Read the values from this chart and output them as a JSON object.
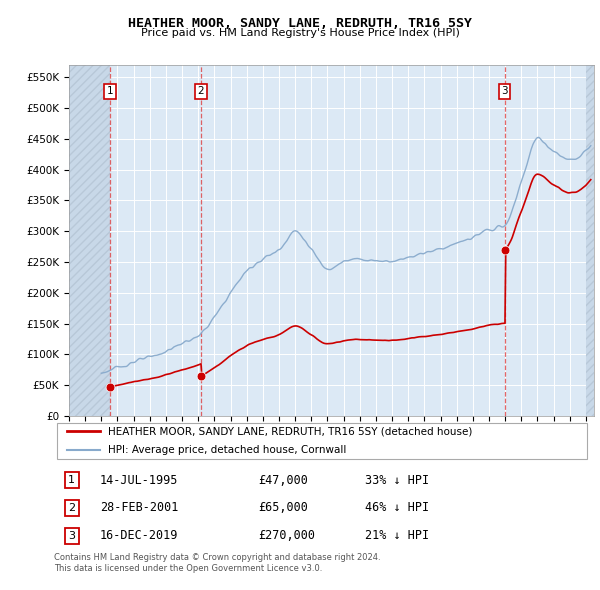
{
  "title": "HEATHER MOOR, SANDY LANE, REDRUTH, TR16 5SY",
  "subtitle": "Price paid vs. HM Land Registry's House Price Index (HPI)",
  "ylim": [
    0,
    570000
  ],
  "yticks": [
    0,
    50000,
    100000,
    150000,
    200000,
    250000,
    300000,
    350000,
    400000,
    450000,
    500000,
    550000
  ],
  "ytick_labels": [
    "£0",
    "£50K",
    "£100K",
    "£150K",
    "£200K",
    "£250K",
    "£300K",
    "£350K",
    "£400K",
    "£450K",
    "£500K",
    "£550K"
  ],
  "xlim_start": 1993.0,
  "xlim_end": 2025.5,
  "background_color": "#ffffff",
  "plot_bg_color": "#dce9f5",
  "sale_color": "#cc0000",
  "hpi_color": "#88aacc",
  "sale_dates": [
    1995.54,
    2001.16,
    2019.96
  ],
  "sale_prices": [
    47000,
    65000,
    270000
  ],
  "sale_labels": [
    "1",
    "2",
    "3"
  ],
  "hpi_anchors_x": [
    1995,
    1996,
    1997,
    1998,
    1999,
    2000,
    2001,
    2002,
    2003,
    2004,
    2005,
    2006,
    2007,
    2008,
    2009,
    2010,
    2011,
    2012,
    2013,
    2014,
    2015,
    2016,
    2017,
    2018,
    2019,
    2020,
    2021,
    2022,
    2023,
    2024,
    2025
  ],
  "hpi_anchors_y": [
    70000,
    78000,
    88000,
    95000,
    105000,
    118000,
    130000,
    160000,
    200000,
    235000,
    255000,
    270000,
    300000,
    270000,
    240000,
    250000,
    255000,
    252000,
    252000,
    258000,
    265000,
    272000,
    280000,
    290000,
    302000,
    310000,
    380000,
    450000,
    430000,
    415000,
    430000
  ],
  "transaction_info": [
    {
      "label": "1",
      "date": "14-JUL-1995",
      "price": "£47,000",
      "hpi": "33% ↓ HPI"
    },
    {
      "label": "2",
      "date": "28-FEB-2001",
      "price": "£65,000",
      "hpi": "46% ↓ HPI"
    },
    {
      "label": "3",
      "date": "16-DEC-2019",
      "price": "£270,000",
      "hpi": "21% ↓ HPI"
    }
  ],
  "legend_line1": "HEATHER MOOR, SANDY LANE, REDRUTH, TR16 5SY (detached house)",
  "legend_line2": "HPI: Average price, detached house, Cornwall",
  "footnote": "Contains HM Land Registry data © Crown copyright and database right 2024.\nThis data is licensed under the Open Government Licence v3.0."
}
